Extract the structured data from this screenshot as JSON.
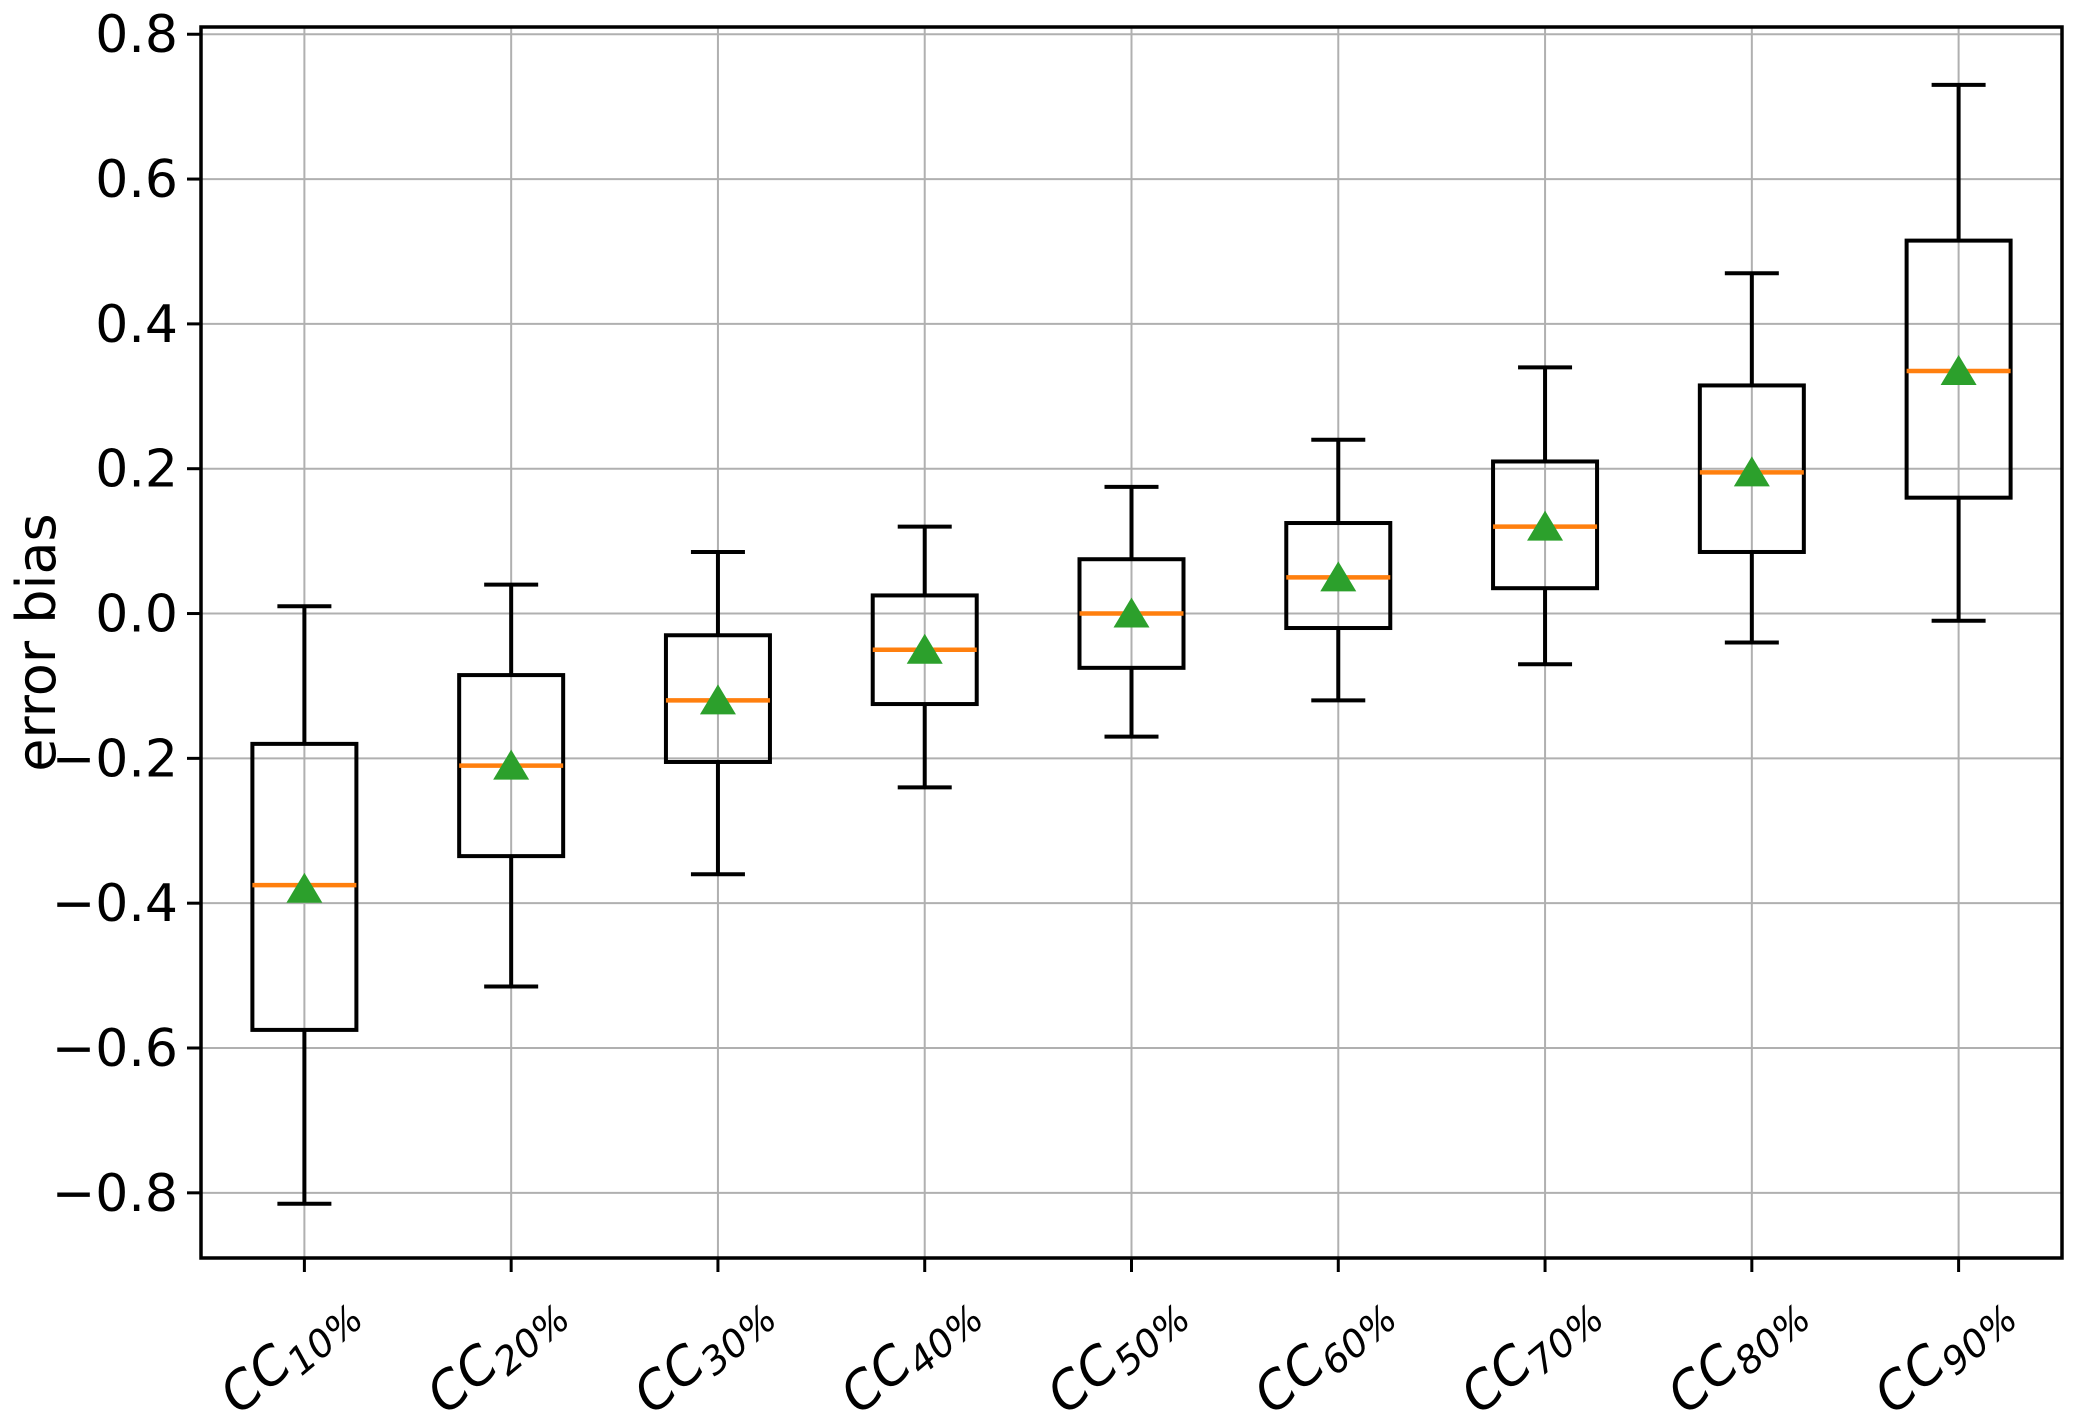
{
  "figure": {
    "ylabel": "error bias"
  },
  "chart_data": {
    "type": "boxplot",
    "title": "",
    "xlabel": "",
    "ylabel": "error bias",
    "grid": true,
    "legend": "none",
    "ylim": [
      -0.89,
      0.81
    ],
    "yticks": [
      {
        "v": 0.8,
        "label": "0.8"
      },
      {
        "v": 0.6,
        "label": "0.6"
      },
      {
        "v": 0.4,
        "label": "0.4"
      },
      {
        "v": 0.2,
        "label": "0.2"
      },
      {
        "v": 0.0,
        "label": "0.0"
      },
      {
        "v": -0.2,
        "label": "−0.2"
      },
      {
        "v": -0.4,
        "label": "−0.4"
      },
      {
        "v": -0.6,
        "label": "−0.6"
      },
      {
        "v": -0.8,
        "label": "−0.8"
      }
    ],
    "categories": [
      {
        "main": "CC",
        "sub": "10%",
        "label": "CC10%"
      },
      {
        "main": "CC",
        "sub": "20%",
        "label": "CC20%"
      },
      {
        "main": "CC",
        "sub": "30%",
        "label": "CC30%"
      },
      {
        "main": "CC",
        "sub": "40%",
        "label": "CC40%"
      },
      {
        "main": "CC",
        "sub": "50%",
        "label": "CC50%"
      },
      {
        "main": "CC",
        "sub": "60%",
        "label": "CC60%"
      },
      {
        "main": "CC",
        "sub": "70%",
        "label": "CC70%"
      },
      {
        "main": "CC",
        "sub": "80%",
        "label": "CC80%"
      },
      {
        "main": "CC",
        "sub": "90%",
        "label": "CC90%"
      }
    ],
    "series": [
      {
        "whislo": -0.815,
        "q1": -0.575,
        "med": -0.375,
        "q3": -0.18,
        "whishi": 0.01,
        "mean": -0.38
      },
      {
        "whislo": -0.515,
        "q1": -0.335,
        "med": -0.21,
        "q3": -0.085,
        "whishi": 0.04,
        "mean": -0.21
      },
      {
        "whislo": -0.36,
        "q1": -0.205,
        "med": -0.12,
        "q3": -0.03,
        "whishi": 0.085,
        "mean": -0.12
      },
      {
        "whislo": -0.24,
        "q1": -0.125,
        "med": -0.05,
        "q3": 0.025,
        "whishi": 0.12,
        "mean": -0.05
      },
      {
        "whislo": -0.17,
        "q1": -0.075,
        "med": 0.0,
        "q3": 0.075,
        "whishi": 0.175,
        "mean": 0.0
      },
      {
        "whislo": -0.12,
        "q1": -0.02,
        "med": 0.05,
        "q3": 0.125,
        "whishi": 0.24,
        "mean": 0.05
      },
      {
        "whislo": -0.07,
        "q1": 0.035,
        "med": 0.12,
        "q3": 0.21,
        "whishi": 0.34,
        "mean": 0.12
      },
      {
        "whislo": -0.04,
        "q1": 0.085,
        "med": 0.195,
        "q3": 0.315,
        "whishi": 0.47,
        "mean": 0.195
      },
      {
        "whislo": -0.01,
        "q1": 0.16,
        "med": 0.335,
        "q3": 0.515,
        "whishi": 0.73,
        "mean": 0.335
      }
    ],
    "colors": {
      "box": "#000000",
      "whisker": "#000000",
      "median": "#ff7f0e",
      "mean_marker": "#2ca02c",
      "grid": "#b0b0b0",
      "axis": "#000000",
      "background": "#ffffff"
    }
  }
}
